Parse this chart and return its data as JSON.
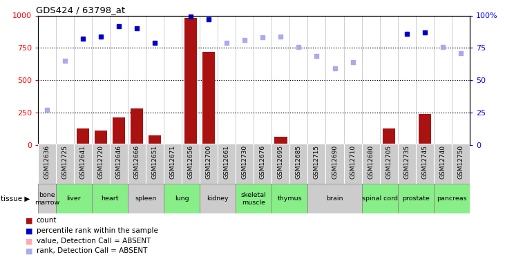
{
  "title": "GDS424 / 63798_at",
  "samples": [
    "GSM12636",
    "GSM12725",
    "GSM12641",
    "GSM12720",
    "GSM12646",
    "GSM12666",
    "GSM12651",
    "GSM12671",
    "GSM12656",
    "GSM12700",
    "GSM12661",
    "GSM12730",
    "GSM12676",
    "GSM12695",
    "GSM12685",
    "GSM12715",
    "GSM12690",
    "GSM12710",
    "GSM12680",
    "GSM12705",
    "GSM12735",
    "GSM12745",
    "GSM12740",
    "GSM12750"
  ],
  "count_values": [
    5,
    5,
    130,
    110,
    215,
    285,
    75,
    5,
    980,
    720,
    5,
    5,
    5,
    65,
    5,
    5,
    5,
    5,
    5,
    130,
    5,
    240,
    5,
    5
  ],
  "count_absent": [
    false,
    false,
    false,
    false,
    false,
    false,
    false,
    false,
    false,
    false,
    true,
    true,
    true,
    false,
    true,
    true,
    true,
    true,
    true,
    false,
    true,
    false,
    true,
    true
  ],
  "rank_values": [
    270,
    650,
    820,
    840,
    920,
    900,
    790,
    null,
    990,
    970,
    790,
    810,
    830,
    840,
    760,
    690,
    590,
    640,
    null,
    null,
    860,
    870,
    760,
    710
  ],
  "rank_absent": [
    true,
    true,
    false,
    false,
    false,
    false,
    false,
    true,
    false,
    false,
    true,
    true,
    true,
    true,
    true,
    true,
    true,
    true,
    true,
    true,
    false,
    false,
    true,
    true
  ],
  "tissues": [
    {
      "name": "bone\nmarrow",
      "start": 0,
      "end": 1,
      "green": false
    },
    {
      "name": "liver",
      "start": 1,
      "end": 3,
      "green": true
    },
    {
      "name": "heart",
      "start": 3,
      "end": 5,
      "green": true
    },
    {
      "name": "spleen",
      "start": 5,
      "end": 7,
      "green": false
    },
    {
      "name": "lung",
      "start": 7,
      "end": 9,
      "green": true
    },
    {
      "name": "kidney",
      "start": 9,
      "end": 11,
      "green": false
    },
    {
      "name": "skeletal\nmuscle",
      "start": 11,
      "end": 13,
      "green": true
    },
    {
      "name": "thymus",
      "start": 13,
      "end": 15,
      "green": true
    },
    {
      "name": "brain",
      "start": 15,
      "end": 18,
      "green": false
    },
    {
      "name": "spinal cord",
      "start": 18,
      "end": 20,
      "green": true
    },
    {
      "name": "prostate",
      "start": 20,
      "end": 22,
      "green": true
    },
    {
      "name": "pancreas",
      "start": 22,
      "end": 24,
      "green": true
    }
  ],
  "ylim_left": [
    0,
    1000
  ],
  "ylim_right": [
    0,
    100
  ],
  "yticks_left": [
    0,
    250,
    500,
    750,
    1000
  ],
  "yticks_right": [
    0,
    25,
    50,
    75,
    100
  ],
  "ytick_labels_right": [
    "0",
    "25",
    "50",
    "75",
    "100%"
  ],
  "bar_color_present": "#aa1111",
  "bar_color_absent": "#ffaaaa",
  "dot_color_present": "#0000cc",
  "dot_color_absent": "#aaaaee",
  "tissue_color_green": "#88ee88",
  "tissue_color_gray": "#cccccc",
  "sample_col_color": "#cccccc",
  "bg_color": "#ffffff"
}
